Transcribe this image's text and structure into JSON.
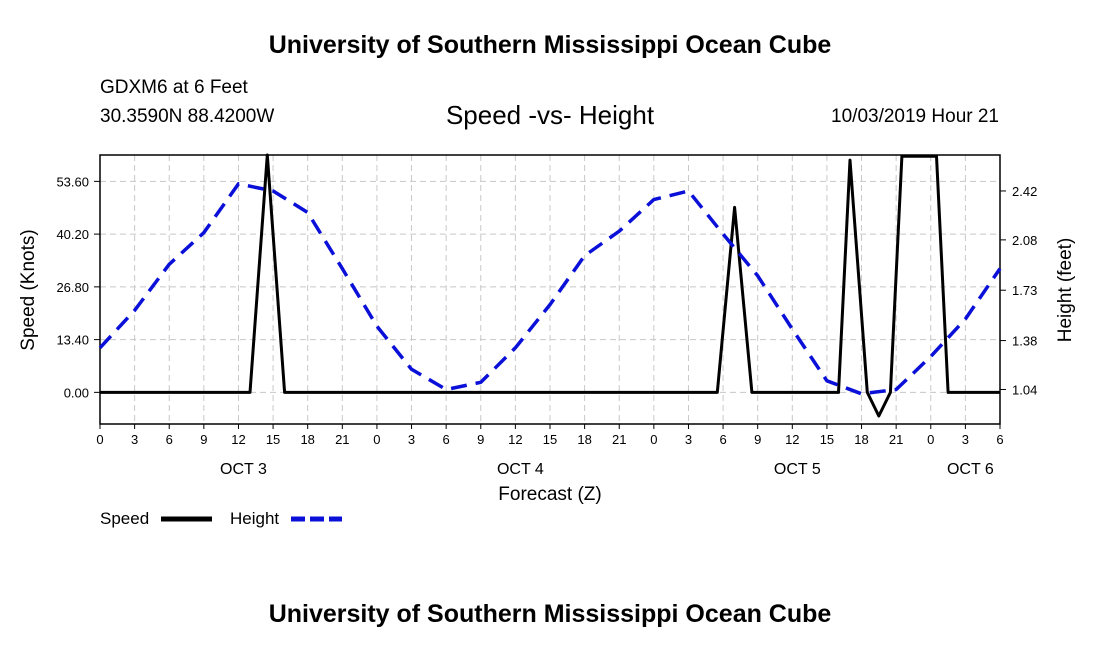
{
  "header": {
    "title": "University of Southern Mississippi Ocean Cube",
    "station": "GDXM6 at 6 Feet",
    "coords": "30.3590N 88.4200W",
    "chart_title": "Speed -vs- Height",
    "timestamp": "10/03/2019 Hour 21"
  },
  "footer": {
    "title": "University of Southern Mississippi Ocean Cube"
  },
  "colors": {
    "speed": "#000000",
    "height": "#0a10d8",
    "grid": "#c8c8c8"
  },
  "chart_data": {
    "type": "line",
    "title": "Speed -vs- Height",
    "xlabel": "Forecast (Z)",
    "ylabel": "Speed (Knots)",
    "y2label": "Height (feet)",
    "x_range": [
      0,
      78
    ],
    "ylim": [
      -8.04,
      60.3
    ],
    "y2lim": [
      0.8,
      2.67
    ],
    "x_ticks": [
      {
        "hour": 0,
        "label": "0"
      },
      {
        "hour": 3,
        "label": "3"
      },
      {
        "hour": 6,
        "label": "6"
      },
      {
        "hour": 9,
        "label": "9"
      },
      {
        "hour": 12,
        "label": "12"
      },
      {
        "hour": 15,
        "label": "15"
      },
      {
        "hour": 18,
        "label": "18"
      },
      {
        "hour": 21,
        "label": "21"
      },
      {
        "hour": 24,
        "label": "0"
      },
      {
        "hour": 27,
        "label": "3"
      },
      {
        "hour": 30,
        "label": "6"
      },
      {
        "hour": 33,
        "label": "9"
      },
      {
        "hour": 36,
        "label": "12"
      },
      {
        "hour": 39,
        "label": "15"
      },
      {
        "hour": 42,
        "label": "18"
      },
      {
        "hour": 45,
        "label": "21"
      },
      {
        "hour": 48,
        "label": "0"
      },
      {
        "hour": 51,
        "label": "3"
      },
      {
        "hour": 54,
        "label": "6"
      },
      {
        "hour": 57,
        "label": "9"
      },
      {
        "hour": 60,
        "label": "12"
      },
      {
        "hour": 63,
        "label": "15"
      },
      {
        "hour": 66,
        "label": "18"
      },
      {
        "hour": 69,
        "label": "21"
      },
      {
        "hour": 72,
        "label": "0"
      },
      {
        "hour": 75,
        "label": "3"
      },
      {
        "hour": 78,
        "label": "6"
      }
    ],
    "day_labels": [
      {
        "hour": 12,
        "label": "OCT 3"
      },
      {
        "hour": 36,
        "label": "OCT 4"
      },
      {
        "hour": 60,
        "label": "OCT 5"
      },
      {
        "hour": 75,
        "label": "OCT 6"
      }
    ],
    "y_ticks": [
      {
        "value": 0,
        "label": "0.00"
      },
      {
        "value": 13.4,
        "label": "13.40"
      },
      {
        "value": 26.8,
        "label": "26.80"
      },
      {
        "value": 40.2,
        "label": "40.20"
      },
      {
        "value": 53.6,
        "label": "53.60"
      }
    ],
    "y2_ticks": [
      {
        "value": 1.04,
        "label": "1.04"
      },
      {
        "value": 1.38,
        "label": "1.38"
      },
      {
        "value": 1.73,
        "label": "1.73"
      },
      {
        "value": 2.08,
        "label": "2.08"
      },
      {
        "value": 2.42,
        "label": "2.42"
      }
    ],
    "series": [
      {
        "name": "Speed",
        "axis": "left",
        "style": "solid",
        "points": [
          [
            0,
            0
          ],
          [
            13,
            0
          ],
          [
            14.5,
            62
          ],
          [
            16,
            0
          ],
          [
            53.5,
            0
          ],
          [
            55,
            47
          ],
          [
            56.5,
            0
          ],
          [
            64,
            0
          ],
          [
            65,
            59
          ],
          [
            66.5,
            0
          ],
          [
            67.5,
            -6
          ],
          [
            68.5,
            0
          ],
          [
            69.5,
            60
          ],
          [
            72.5,
            60
          ],
          [
            73.5,
            0
          ],
          [
            78,
            0
          ]
        ]
      },
      {
        "name": "Height",
        "axis": "right",
        "style": "dashed",
        "points": [
          [
            0,
            1.33
          ],
          [
            3,
            1.59
          ],
          [
            6,
            1.91
          ],
          [
            9,
            2.13
          ],
          [
            12,
            2.47
          ],
          [
            15,
            2.42
          ],
          [
            18,
            2.27
          ],
          [
            21,
            1.88
          ],
          [
            24,
            1.48
          ],
          [
            27,
            1.18
          ],
          [
            30,
            1.04
          ],
          [
            33,
            1.09
          ],
          [
            36,
            1.33
          ],
          [
            39,
            1.63
          ],
          [
            42,
            1.97
          ],
          [
            45,
            2.14
          ],
          [
            48,
            2.36
          ],
          [
            51,
            2.42
          ],
          [
            54,
            2.12
          ],
          [
            57,
            1.83
          ],
          [
            60,
            1.46
          ],
          [
            63,
            1.1
          ],
          [
            66,
            1.01
          ],
          [
            69,
            1.04
          ],
          [
            72,
            1.27
          ],
          [
            75,
            1.53
          ],
          [
            78,
            1.88
          ]
        ]
      }
    ],
    "legend": [
      {
        "name": "Speed",
        "label": "Speed"
      },
      {
        "name": "Height",
        "label": "Height"
      }
    ]
  }
}
